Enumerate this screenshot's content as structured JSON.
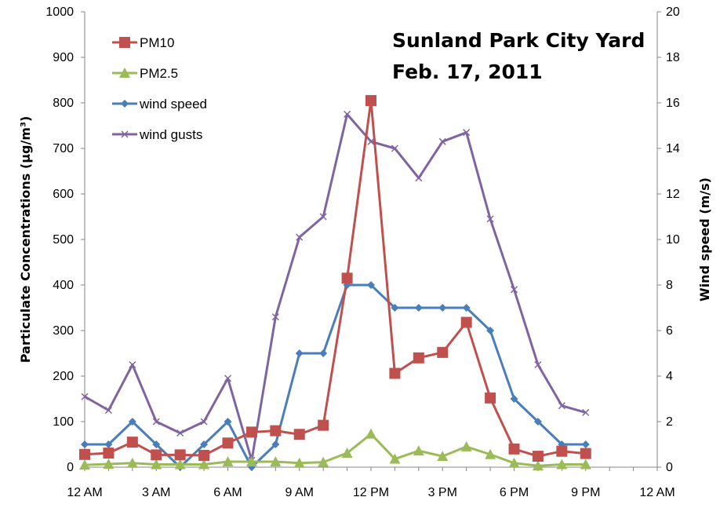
{
  "chart_data": {
    "type": "line",
    "title_lines": [
      "Sunland Park City Yard",
      "Feb. 17, 2011"
    ],
    "ylabel": "Particulate Concentrations (µg/m³)",
    "y2label": "Wind speed (m/s)",
    "ylim": [
      0,
      1000
    ],
    "y2lim": [
      0,
      20
    ],
    "yticks": [
      "0",
      "100",
      "200",
      "300",
      "400",
      "500",
      "600",
      "700",
      "800",
      "900",
      "1000"
    ],
    "y2ticks": [
      "0",
      "2",
      "4",
      "6",
      "8",
      "10",
      "12",
      "14",
      "16",
      "18",
      "20"
    ],
    "xticks": [
      "12 AM",
      "3 AM",
      "6 AM",
      "9 AM",
      "12 PM",
      "3 PM",
      "6 PM",
      "9 PM",
      "12 AM"
    ],
    "xlim_hours": [
      0,
      24
    ],
    "x_hours": [
      0,
      1,
      2,
      3,
      4,
      5,
      6,
      7,
      8,
      9,
      10,
      11,
      12,
      13,
      14,
      15,
      16,
      17,
      18,
      19,
      20,
      21
    ],
    "grid": false,
    "legend_position": "top-left",
    "series": [
      {
        "name": "PM10",
        "axis": "left",
        "color": "#c0504d",
        "marker": "square",
        "values": [
          28,
          31,
          55,
          27,
          27,
          26,
          53,
          77,
          80,
          72,
          92,
          415,
          805,
          206,
          240,
          252,
          318,
          152,
          40,
          24,
          35,
          30
        ]
      },
      {
        "name": "PM2.5",
        "axis": "left",
        "color": "#9bbb59",
        "marker": "triangle",
        "values": [
          5,
          7,
          9,
          6,
          6,
          6,
          12,
          12,
          12,
          9,
          11,
          31,
          73,
          18,
          36,
          24,
          45,
          28,
          9,
          3,
          6,
          6
        ]
      },
      {
        "name": "wind speed",
        "axis": "right",
        "color": "#4a7ebb",
        "marker": "diamond",
        "values": [
          1,
          1,
          2,
          1,
          0,
          1,
          2,
          0,
          1,
          5,
          5,
          8,
          8,
          7,
          7,
          7,
          7,
          6,
          3,
          2,
          1,
          1
        ]
      },
      {
        "name": "wind gusts",
        "axis": "right",
        "color": "#8064a2",
        "marker": "x",
        "values": [
          3.1,
          2.5,
          4.5,
          2,
          1.5,
          2,
          3.9,
          0.3,
          6.6,
          10.1,
          11,
          15.5,
          14.3,
          14,
          12.7,
          14.3,
          14.7,
          10.9,
          7.8,
          4.5,
          2.7,
          2.4
        ]
      }
    ]
  }
}
